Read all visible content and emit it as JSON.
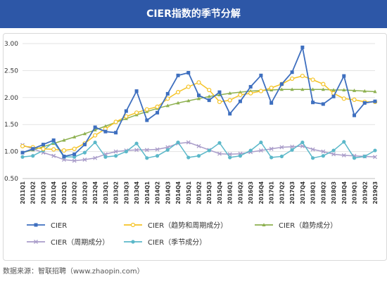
{
  "header": {
    "title": "CIER指数的季节分解"
  },
  "footer": {
    "source": "数据来源：智联招聘（www.zhaopin.com）"
  },
  "colors": {
    "header_bg": "#2d57a7",
    "cier": "#3e6fbf",
    "trend_cycle": "#f5c324",
    "trend": "#8db04f",
    "cycle": "#a99cc9",
    "seasonal": "#5bb8c9"
  },
  "chart_data": {
    "type": "line",
    "title": "",
    "xlabel": "",
    "ylabel": "",
    "ylim": [
      0.5,
      3.0
    ],
    "yticks": [
      "0.50",
      "1.00",
      "1.50",
      "2.00",
      "2.50",
      "3.00"
    ],
    "grid": true,
    "legend_position": "bottom",
    "categories": [
      "2011Q1",
      "2011Q2",
      "2011Q3",
      "2011Q4",
      "2012Q1",
      "2012Q2",
      "2012Q3",
      "2012Q4",
      "2013Q1",
      "2013Q2",
      "2013Q3",
      "2013Q4",
      "2014Q1",
      "2014Q2",
      "2014Q3",
      "2014Q4",
      "2015Q1",
      "2015Q2",
      "2015Q3",
      "2015Q4",
      "2016Q1",
      "2016Q2",
      "2016Q3",
      "2016Q4",
      "2017Q1",
      "2017Q2",
      "2017Q3",
      "2017Q4",
      "2018Q1",
      "2018Q2",
      "2018Q3",
      "2018Q4",
      "2019Q1",
      "2019Q2",
      "2019Q3"
    ],
    "series": [
      {
        "name": "CIER",
        "color": "#3e6fbf",
        "marker": "square",
        "values": [
          0.98,
          1.05,
          1.13,
          1.21,
          0.91,
          0.95,
          1.13,
          1.45,
          1.37,
          1.35,
          1.75,
          2.12,
          1.58,
          1.72,
          2.07,
          2.41,
          2.46,
          2.04,
          1.95,
          2.1,
          1.7,
          1.93,
          2.2,
          2.41,
          1.9,
          2.25,
          2.47,
          2.93,
          1.91,
          1.88,
          2.02,
          2.4,
          1.67,
          1.9,
          1.93
        ]
      },
      {
        "name": "CIER（趋势和周期成分）",
        "color": "#f5c324",
        "marker": "circle",
        "values": [
          1.1,
          1.08,
          1.05,
          1.04,
          1.02,
          1.05,
          1.15,
          1.3,
          1.42,
          1.55,
          1.65,
          1.72,
          1.78,
          1.83,
          1.98,
          2.1,
          2.2,
          2.28,
          2.14,
          1.92,
          1.95,
          2.05,
          2.08,
          2.12,
          2.18,
          2.25,
          2.35,
          2.4,
          2.33,
          2.25,
          2.08,
          1.98,
          1.96,
          1.92,
          1.92
        ]
      },
      {
        "name": "CIER（趋势成分）",
        "color": "#8db04f",
        "marker": "triangle",
        "values": [
          0.98,
          1.03,
          1.09,
          1.15,
          1.21,
          1.27,
          1.33,
          1.4,
          1.47,
          1.54,
          1.61,
          1.68,
          1.74,
          1.8,
          1.85,
          1.9,
          1.94,
          1.98,
          2.02,
          2.05,
          2.08,
          2.1,
          2.12,
          2.13,
          2.14,
          2.15,
          2.15,
          2.15,
          2.15,
          2.15,
          2.14,
          2.14,
          2.13,
          2.12,
          2.11
        ]
      },
      {
        "name": "CIER（周期成分）",
        "color": "#a99cc9",
        "marker": "x",
        "values": [
          1.12,
          1.05,
          0.98,
          0.92,
          0.85,
          0.83,
          0.85,
          0.88,
          0.95,
          1.0,
          1.02,
          1.03,
          1.03,
          1.04,
          1.08,
          1.15,
          1.17,
          1.1,
          1.03,
          0.96,
          0.95,
          0.96,
          0.99,
          1.02,
          1.05,
          1.08,
          1.09,
          1.1,
          1.04,
          1.0,
          0.95,
          0.93,
          0.92,
          0.91,
          0.9
        ]
      },
      {
        "name": "CIER（季节成分）",
        "color": "#5bb8c9",
        "marker": "dot",
        "values": [
          0.9,
          0.92,
          1.02,
          1.18,
          0.9,
          0.9,
          0.98,
          1.17,
          0.9,
          0.92,
          1.0,
          1.15,
          0.88,
          0.92,
          1.03,
          1.17,
          0.89,
          0.92,
          1.02,
          1.16,
          0.89,
          0.92,
          1.02,
          1.17,
          0.89,
          0.91,
          1.03,
          1.17,
          0.88,
          0.92,
          1.02,
          1.18,
          0.88,
          0.91,
          1.02
        ]
      }
    ]
  }
}
